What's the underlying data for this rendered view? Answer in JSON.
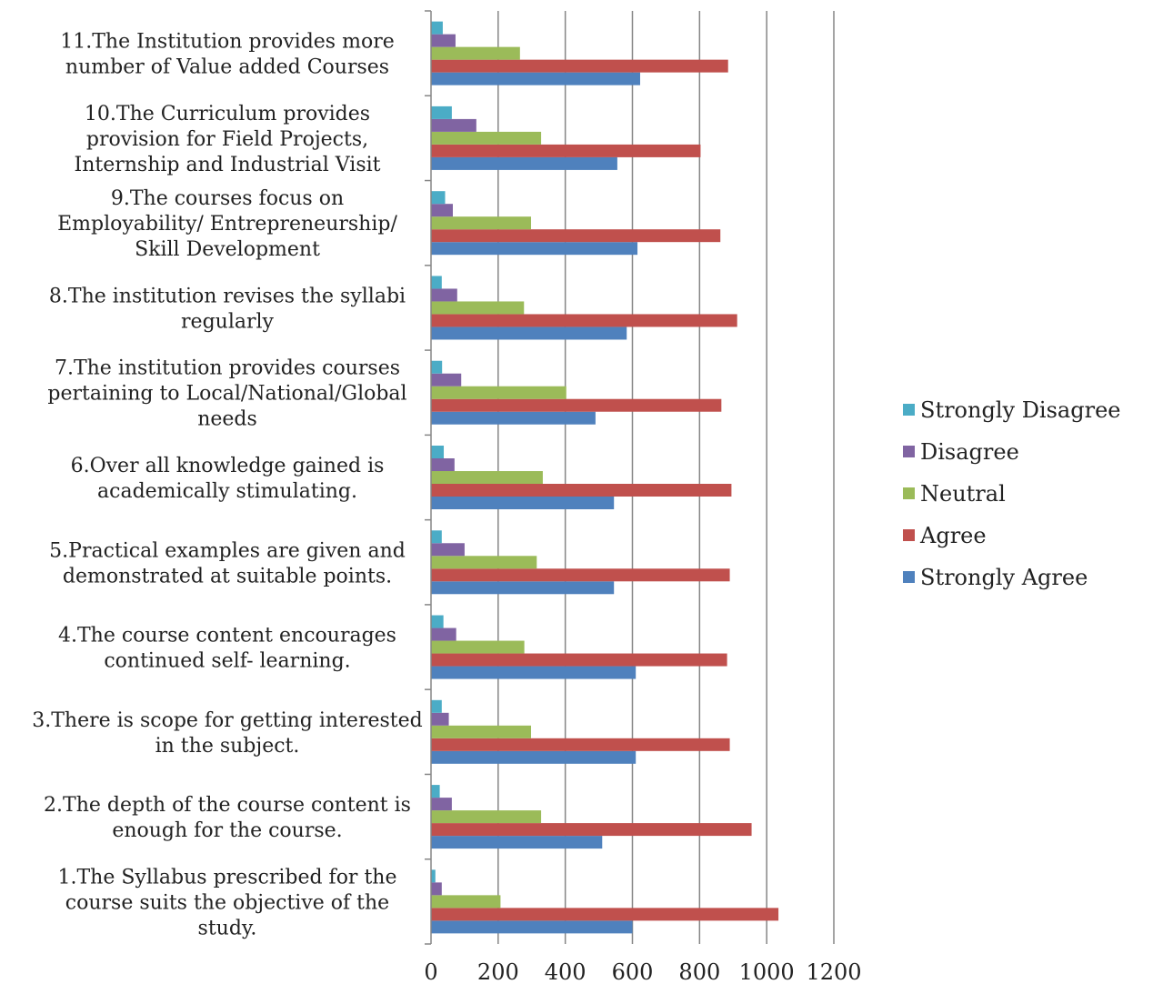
{
  "chart_data": {
    "type": "bar",
    "orientation": "horizontal",
    "title": "",
    "xlabel": "",
    "ylabel": "",
    "xlim": [
      0,
      1200
    ],
    "xticks": [
      "0",
      "200",
      "400",
      "600",
      "800",
      "1000",
      "1200"
    ],
    "grid": "vertical",
    "legend_position": "right",
    "categories": [
      [
        "1.The Syllabus prescribed for the",
        "course suits the objective of the",
        "study."
      ],
      [
        "2.The depth of the course content is",
        "enough for the course."
      ],
      [
        "3.There is scope for getting interested",
        "in the subject."
      ],
      [
        "4.The course content encourages",
        "continued self- learning."
      ],
      [
        "5.Practical examples are given and",
        "demonstrated at suitable points."
      ],
      [
        "6.Over all knowledge gained is",
        "academically stimulating."
      ],
      [
        "7.The institution provides courses",
        "pertaining to Local/National/Global",
        "needs"
      ],
      [
        "8.The institution revises the syllabi",
        "regularly"
      ],
      [
        "9.The courses focus on",
        "Employability/ Entrepreneurship/",
        "Skill Development"
      ],
      [
        "10.The Curriculum provides",
        "provision for Field Projects,",
        "Internship and Industrial Visit"
      ],
      [
        "11.The Institution provides more",
        "number of Value added Courses"
      ]
    ],
    "series": [
      {
        "name": "Strongly Agree",
        "color": "#4f81bd",
        "values": [
          600,
          510,
          610,
          610,
          545,
          545,
          490,
          583,
          615,
          555,
          623
        ]
      },
      {
        "name": "Agree",
        "color": "#c0504d",
        "values": [
          1035,
          955,
          890,
          882,
          890,
          895,
          865,
          912,
          862,
          803,
          885
        ]
      },
      {
        "name": "Neutral",
        "color": "#9bbb59",
        "values": [
          207,
          328,
          298,
          278,
          315,
          333,
          403,
          277,
          298,
          328,
          265
        ]
      },
      {
        "name": "Disagree",
        "color": "#8064a2",
        "values": [
          32,
          62,
          53,
          75,
          100,
          70,
          90,
          78,
          65,
          135,
          73
        ]
      },
      {
        "name": "Strongly Disagree",
        "color": "#4bacc6",
        "values": [
          13,
          26,
          32,
          37,
          32,
          38,
          33,
          32,
          42,
          62,
          35
        ]
      }
    ],
    "legend_order": [
      "Strongly Disagree",
      "Disagree",
      "Neutral",
      "Agree",
      "Strongly Agree"
    ]
  }
}
